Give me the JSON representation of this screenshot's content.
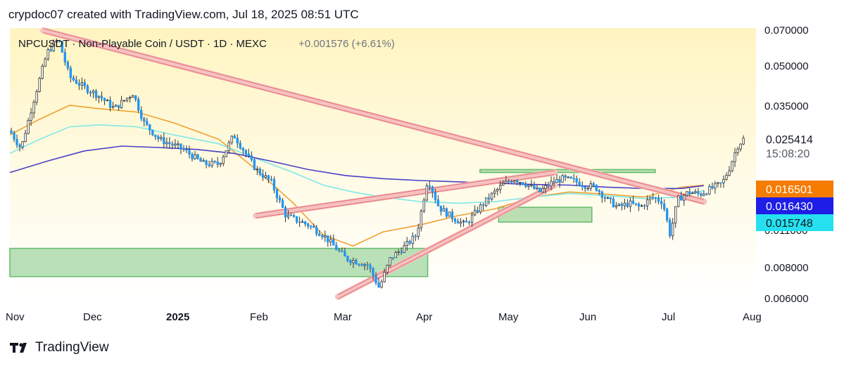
{
  "header": {
    "attribution": "crypdoc07 created with TradingView.com, Jul 18, 2025 08:51 UTC"
  },
  "footer": {
    "brand": "TradingView",
    "logo_icon": "tradingview-logo-icon"
  },
  "chart_data": {
    "type": "candlestick",
    "legend": {
      "symbol": "NPCUSDT · Non-Playable Coin / USDT · 1D · MEXC",
      "change": "+0.001576 (+6.61%)"
    },
    "y_axis": {
      "ticks": [
        "0.070000",
        "0.050000",
        "0.035000",
        "0.011000",
        "0.008000",
        "0.006000"
      ],
      "tick_values": [
        0.07,
        0.05,
        0.035,
        0.011,
        0.008,
        0.006
      ]
    },
    "x_axis": {
      "ticks": [
        "Nov",
        "Dec",
        "2025",
        "Feb",
        "Mar",
        "Apr",
        "May",
        "Jun",
        "Jul",
        "Aug"
      ]
    },
    "price_labels": [
      {
        "name": "last-price",
        "value": "0.025414",
        "extra": "15:08:20",
        "color": "#ffffff",
        "text_color": "#131722",
        "price": 0.025414
      },
      {
        "name": "ma-orange",
        "value": "0.016501",
        "color": "#f57c00",
        "text_color": "#ffffff",
        "price": 0.016501
      },
      {
        "name": "ma-blue",
        "value": "0.016430",
        "color": "#1e1ee6",
        "text_color": "#ffffff",
        "price": 0.01643
      },
      {
        "name": "ma-cyan",
        "value": "0.015748",
        "color": "#26e0f0",
        "text_color": "#131722",
        "price": 0.015748
      }
    ],
    "colors": {
      "up": "#ffffff",
      "down": "#2196f3",
      "wick": "#333333",
      "ma_orange": "#f0a030",
      "ma_cyan": "#7ee8e8",
      "ma_blue": "#4a3fc8",
      "trendline": "#e57373",
      "zone": "#81c784",
      "background_top": "#fff6c8",
      "background_bottom": "#ffffff"
    },
    "moving_averages": [
      {
        "name": "ma-orange",
        "color": "#f0a030",
        "points": [
          [
            0,
            0.026
          ],
          [
            0.04,
            0.03
          ],
          [
            0.08,
            0.034
          ],
          [
            0.12,
            0.033
          ],
          [
            0.17,
            0.032
          ],
          [
            0.22,
            0.029
          ],
          [
            0.28,
            0.025
          ],
          [
            0.33,
            0.019
          ],
          [
            0.38,
            0.014
          ],
          [
            0.42,
            0.0105
          ],
          [
            0.46,
            0.0095
          ],
          [
            0.5,
            0.0108
          ],
          [
            0.55,
            0.0115
          ],
          [
            0.6,
            0.0125
          ],
          [
            0.65,
            0.0133
          ],
          [
            0.7,
            0.0148
          ],
          [
            0.75,
            0.0155
          ],
          [
            0.8,
            0.0152
          ],
          [
            0.85,
            0.0148
          ],
          [
            0.9,
            0.0162
          ],
          [
            0.93,
            0.0165
          ]
        ]
      },
      {
        "name": "ma-cyan",
        "color": "#7ee8e8",
        "points": [
          [
            0,
            0.022
          ],
          [
            0.04,
            0.025
          ],
          [
            0.08,
            0.028
          ],
          [
            0.12,
            0.0285
          ],
          [
            0.17,
            0.028
          ],
          [
            0.22,
            0.026
          ],
          [
            0.28,
            0.024
          ],
          [
            0.33,
            0.021
          ],
          [
            0.38,
            0.0185
          ],
          [
            0.42,
            0.0165
          ],
          [
            0.46,
            0.0155
          ],
          [
            0.5,
            0.0148
          ],
          [
            0.55,
            0.0142
          ],
          [
            0.6,
            0.014
          ],
          [
            0.65,
            0.0142
          ],
          [
            0.7,
            0.0148
          ],
          [
            0.75,
            0.0153
          ],
          [
            0.8,
            0.015
          ],
          [
            0.85,
            0.0146
          ],
          [
            0.9,
            0.0148
          ],
          [
            0.93,
            0.01575
          ]
        ]
      },
      {
        "name": "ma-blue",
        "color": "#4a3fc8",
        "points": [
          [
            0,
            0.0185
          ],
          [
            0.05,
            0.0205
          ],
          [
            0.1,
            0.0225
          ],
          [
            0.15,
            0.0235
          ],
          [
            0.2,
            0.0232
          ],
          [
            0.25,
            0.0228
          ],
          [
            0.3,
            0.022
          ],
          [
            0.35,
            0.0205
          ],
          [
            0.4,
            0.019
          ],
          [
            0.45,
            0.018
          ],
          [
            0.5,
            0.0175
          ],
          [
            0.55,
            0.0172
          ],
          [
            0.6,
            0.017
          ],
          [
            0.65,
            0.0168
          ],
          [
            0.7,
            0.0166
          ],
          [
            0.75,
            0.0165
          ],
          [
            0.8,
            0.0162
          ],
          [
            0.85,
            0.016
          ],
          [
            0.9,
            0.016
          ],
          [
            0.93,
            0.01643
          ]
        ]
      }
    ],
    "trendlines": [
      {
        "name": "main-descending-trendline",
        "from": [
          0.045,
          0.067
        ],
        "to": [
          0.93,
          0.0142
        ]
      },
      {
        "name": "ascending-channel-top",
        "from": [
          0.33,
          0.0125
        ],
        "to": [
          0.73,
          0.0185
        ]
      },
      {
        "name": "ascending-channel-bottom",
        "from": [
          0.44,
          0.006
        ],
        "to": [
          0.73,
          0.0165
        ]
      }
    ],
    "zones": [
      {
        "name": "support-zone-low",
        "x0": 0.0,
        "x1": 0.56,
        "y0": 0.0072,
        "y1": 0.0093
      },
      {
        "name": "support-zone-mid",
        "x0": 0.655,
        "x1": 0.78,
        "y0": 0.0118,
        "y1": 0.0135
      },
      {
        "name": "resistance-line",
        "x0": 0.63,
        "x1": 0.865,
        "y0": 0.0185,
        "y1": 0.019
      }
    ]
  }
}
